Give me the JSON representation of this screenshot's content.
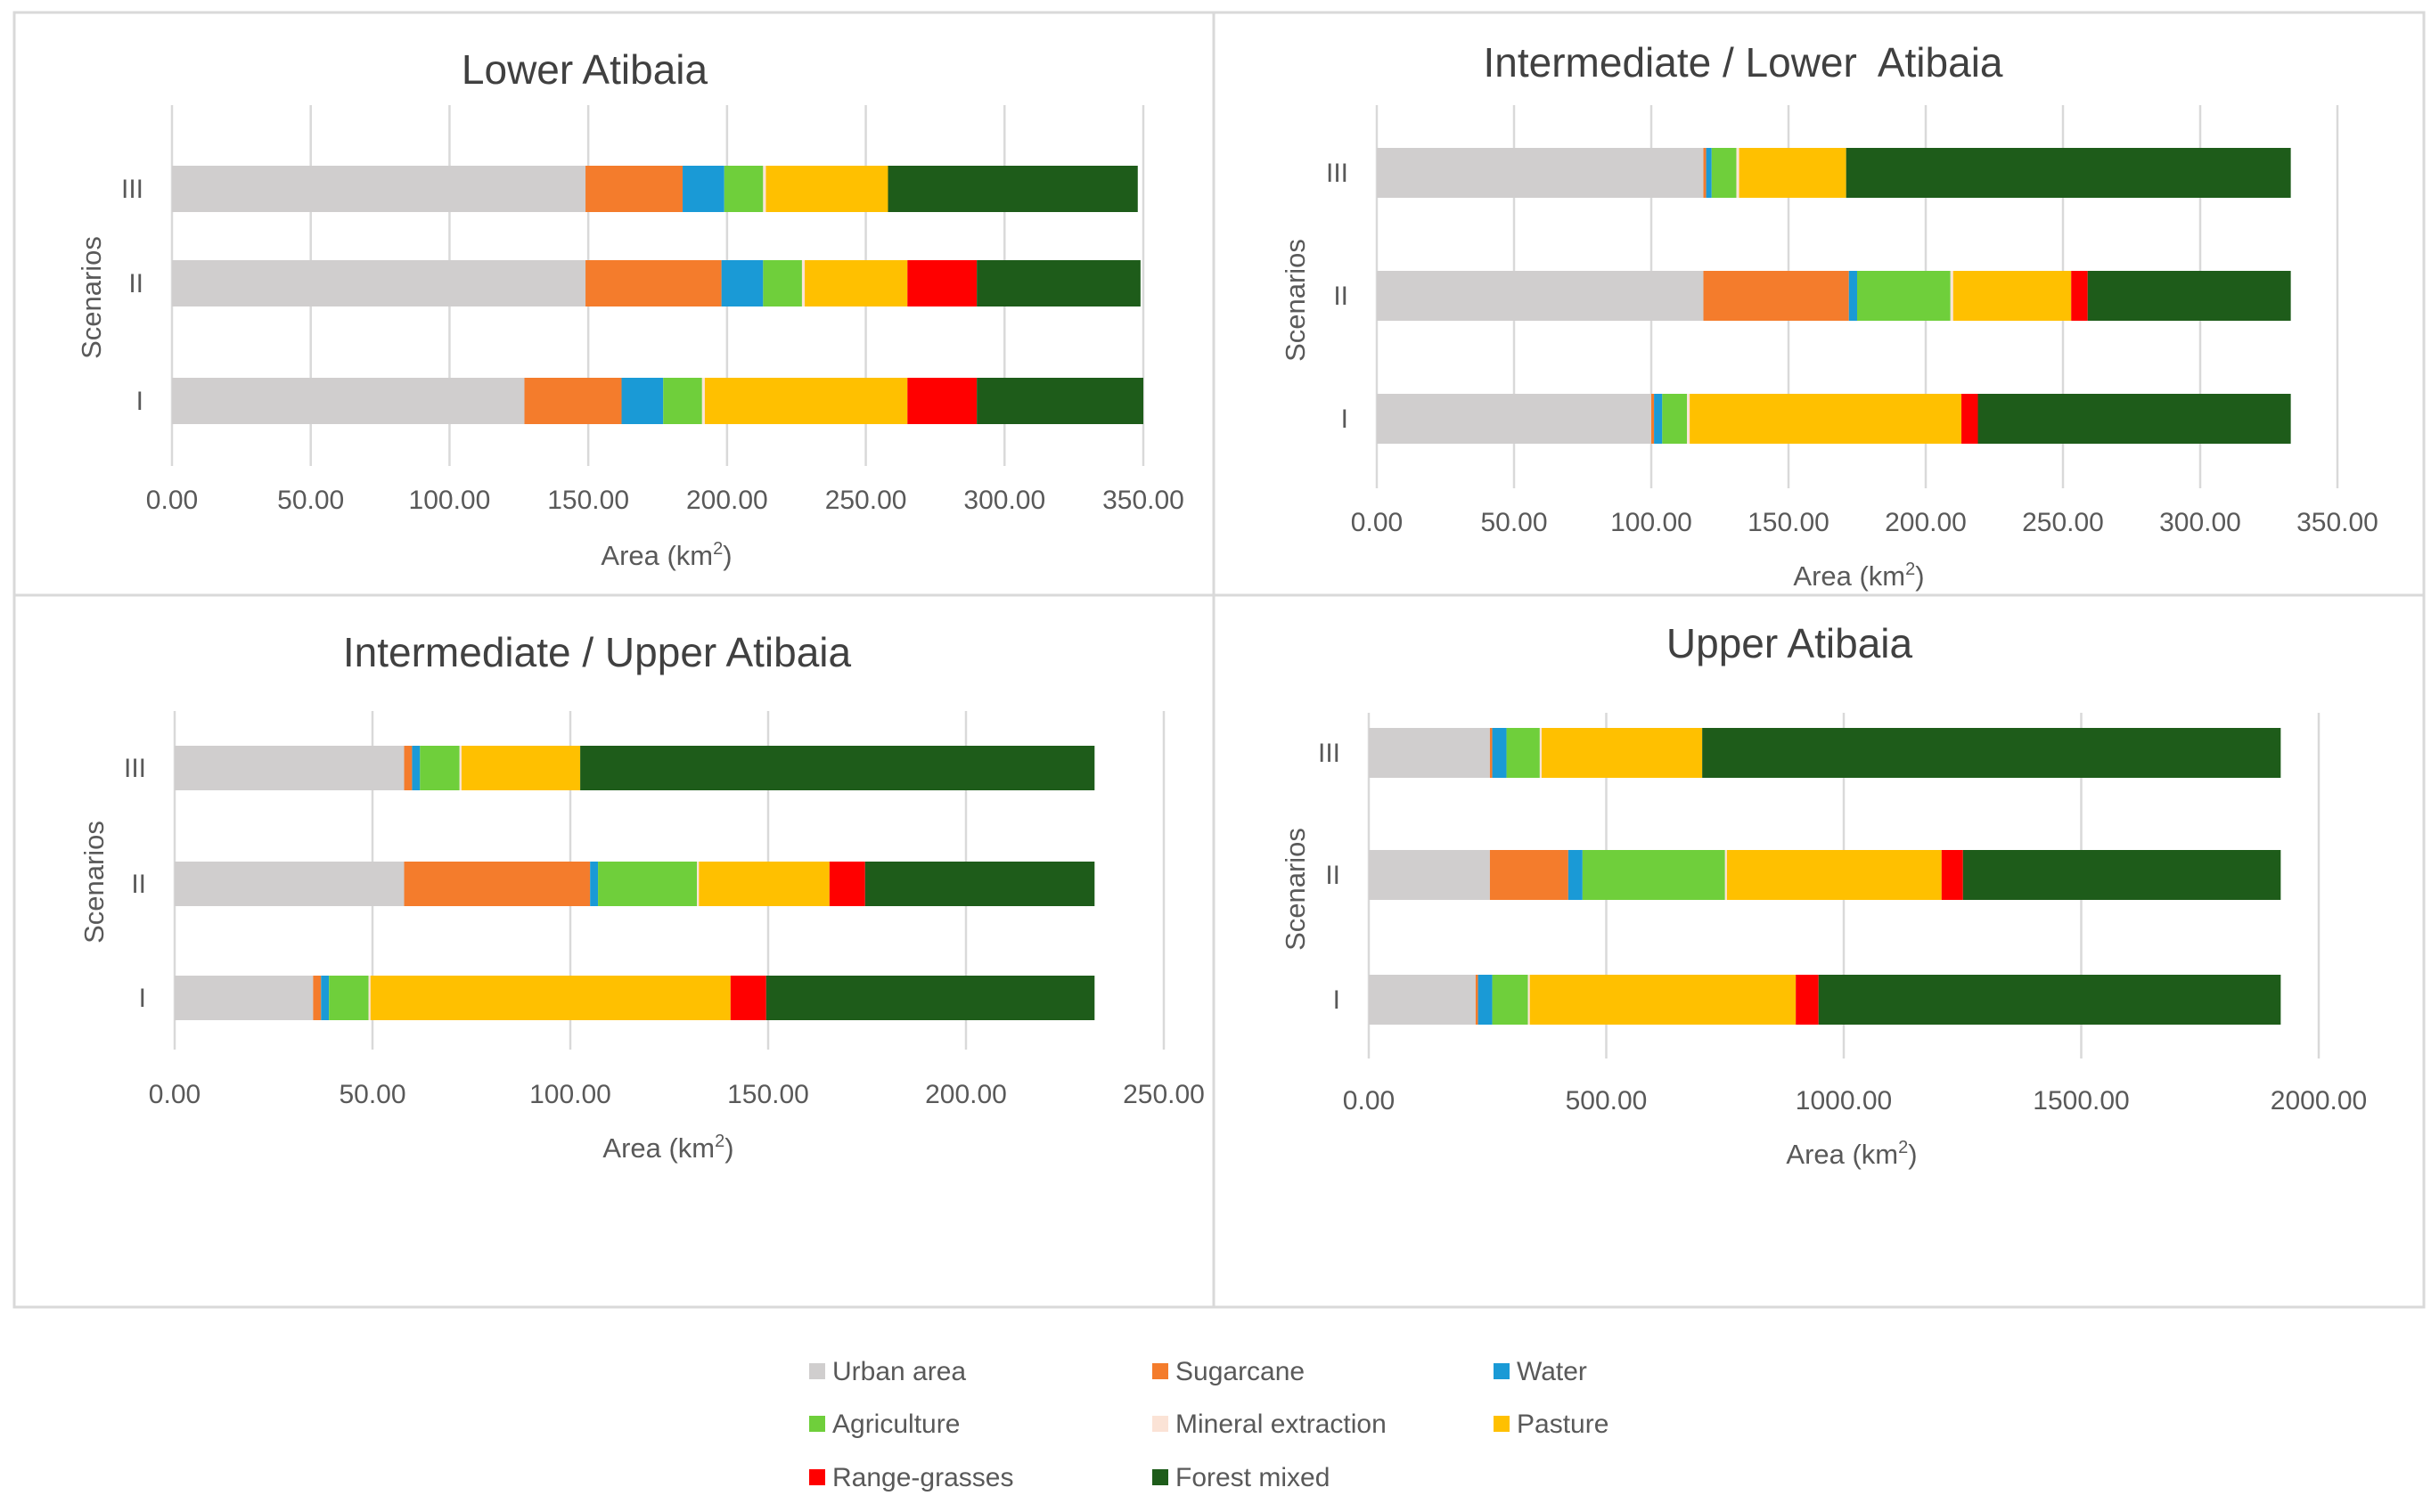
{
  "legend": [
    {
      "key": "urban",
      "label": "Urban area",
      "color": "#d0cece"
    },
    {
      "key": "sugarcane",
      "label": "Sugarcane",
      "color": "#f47c2c"
    },
    {
      "key": "water",
      "label": "Water",
      "color": "#1a9ad6"
    },
    {
      "key": "agriculture",
      "label": "Agriculture",
      "color": "#6fcf3b"
    },
    {
      "key": "mineral",
      "label": "Mineral extraction",
      "color": "#fbe3d6"
    },
    {
      "key": "pasture",
      "label": "Pasture",
      "color": "#ffc000"
    },
    {
      "key": "range",
      "label": "Range-grasses",
      "color": "#ff0000"
    },
    {
      "key": "forest",
      "label": "Forest mixed",
      "color": "#1e5c1a"
    }
  ],
  "chart_data": [
    {
      "type": "bar",
      "orientation": "horizontal",
      "stacked": true,
      "title": "Lower Atibaia",
      "xlabel": "Area (km",
      "xlabel_sup": "2",
      "xlabel_end": ")",
      "ylabel": "Scenarios",
      "categories": [
        "III",
        "II",
        "I"
      ],
      "xlim": [
        0,
        350
      ],
      "ticks": [
        "0.00",
        "50.00",
        "100.00",
        "150.00",
        "200.00",
        "250.00",
        "300.00",
        "350.00"
      ],
      "series": [
        {
          "name": "Urban area",
          "values": [
            149,
            149,
            127
          ]
        },
        {
          "name": "Sugarcane",
          "values": [
            35,
            49,
            35
          ]
        },
        {
          "name": "Water",
          "values": [
            15,
            15,
            15
          ]
        },
        {
          "name": "Agriculture",
          "values": [
            14,
            14,
            14
          ]
        },
        {
          "name": "Mineral extraction",
          "values": [
            1,
            1,
            1
          ]
        },
        {
          "name": "Pasture",
          "values": [
            44,
            37,
            73
          ]
        },
        {
          "name": "Range-grasses",
          "values": [
            0,
            25,
            25
          ]
        },
        {
          "name": "Forest mixed",
          "values": [
            90,
            59,
            60
          ]
        }
      ]
    },
    {
      "type": "bar",
      "orientation": "horizontal",
      "stacked": true,
      "title": "Intermediate / Lower  Atibaia",
      "xlabel": "Area (km",
      "xlabel_sup": "2",
      "xlabel_end": ")",
      "ylabel": "Scenarios",
      "categories": [
        "III",
        "II",
        "I"
      ],
      "xlim": [
        0,
        350
      ],
      "ticks": [
        "0.00",
        "50.00",
        "100.00",
        "150.00",
        "200.00",
        "250.00",
        "300.00",
        "350.00"
      ],
      "series": [
        {
          "name": "Urban area",
          "values": [
            119,
            119,
            100
          ]
        },
        {
          "name": "Sugarcane",
          "values": [
            1,
            53,
            1
          ]
        },
        {
          "name": "Water",
          "values": [
            2,
            3,
            3
          ]
        },
        {
          "name": "Agriculture",
          "values": [
            9,
            34,
            9
          ]
        },
        {
          "name": "Mineral extraction",
          "values": [
            1,
            1,
            1
          ]
        },
        {
          "name": "Pasture",
          "values": [
            39,
            43,
            99
          ]
        },
        {
          "name": "Range-grasses",
          "values": [
            0,
            6,
            6
          ]
        },
        {
          "name": "Forest mixed",
          "values": [
            162,
            74,
            114
          ]
        }
      ]
    },
    {
      "type": "bar",
      "orientation": "horizontal",
      "stacked": true,
      "title": "Intermediate / Upper Atibaia",
      "xlabel": "Area (km",
      "xlabel_sup": "2",
      "xlabel_end": ")",
      "ylabel": "Scenarios",
      "categories": [
        "III",
        "II",
        "I"
      ],
      "xlim": [
        0,
        250
      ],
      "ticks": [
        "0.00",
        "50.00",
        "100.00",
        "150.00",
        "200.00",
        "250.00"
      ],
      "series": [
        {
          "name": "Urban area",
          "values": [
            58,
            58,
            35
          ]
        },
        {
          "name": "Sugarcane",
          "values": [
            2,
            47,
            2
          ]
        },
        {
          "name": "Water",
          "values": [
            2,
            2,
            2
          ]
        },
        {
          "name": "Agriculture",
          "values": [
            10,
            25,
            10
          ]
        },
        {
          "name": "Mineral extraction",
          "values": [
            0.5,
            0.5,
            0.5
          ]
        },
        {
          "name": "Pasture",
          "values": [
            30,
            33,
            91
          ]
        },
        {
          "name": "Range-grasses",
          "values": [
            0,
            9,
            9
          ]
        },
        {
          "name": "Forest mixed",
          "values": [
            130,
            58,
            83
          ]
        }
      ]
    },
    {
      "type": "bar",
      "orientation": "horizontal",
      "stacked": true,
      "title": "Upper Atibaia",
      "xlabel": "Area (km",
      "xlabel_sup": "2",
      "xlabel_end": ")",
      "ylabel": "Scenarios",
      "categories": [
        "III",
        "II",
        "I"
      ],
      "xlim": [
        0,
        2000
      ],
      "ticks": [
        "0.00",
        "500.00",
        "1000.00",
        "1500.00",
        "2000.00"
      ],
      "series": [
        {
          "name": "Urban area",
          "values": [
            255,
            255,
            225
          ]
        },
        {
          "name": "Sugarcane",
          "values": [
            5,
            165,
            5
          ]
        },
        {
          "name": "Water",
          "values": [
            30,
            30,
            30
          ]
        },
        {
          "name": "Agriculture",
          "values": [
            70,
            300,
            75
          ]
        },
        {
          "name": "Mineral extraction",
          "values": [
            4,
            4,
            4
          ]
        },
        {
          "name": "Pasture",
          "values": [
            338,
            452,
            560
          ]
        },
        {
          "name": "Range-grasses",
          "values": [
            0,
            45,
            48
          ]
        },
        {
          "name": "Forest mixed",
          "values": [
            1218,
            669,
            973
          ]
        }
      ]
    }
  ]
}
